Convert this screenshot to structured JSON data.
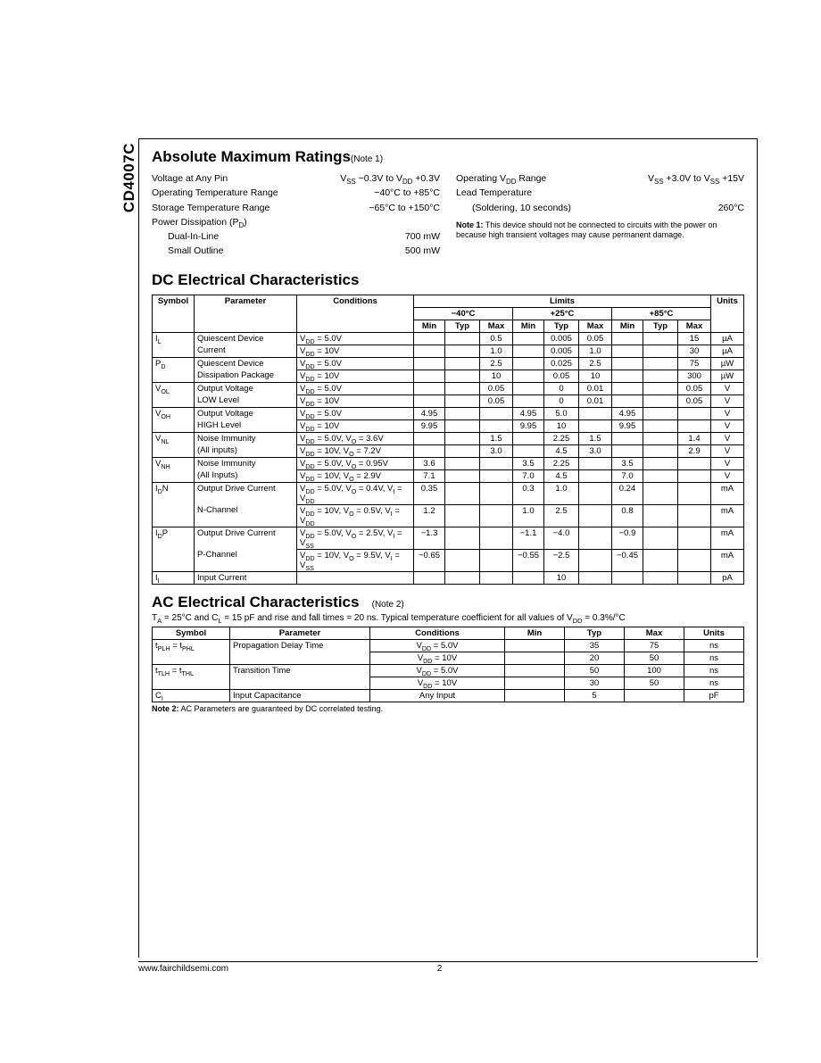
{
  "part_number": "CD4007C",
  "footer_url": "www.fairchildsemi.com",
  "page_number": "2",
  "amr": {
    "title": "Absolute Maximum Ratings",
    "title_note": "(Note 1)",
    "left": [
      {
        "label_html": "Voltage at Any Pin",
        "value_html": "V<sub>SS</sub> −0.3V to V<sub>DD</sub> +0.3V",
        "indent": 0
      },
      {
        "label_html": "Operating Temperature Range",
        "value_html": "−40°C to +85°C",
        "indent": 0
      },
      {
        "label_html": "Storage Temperature Range",
        "value_html": "−65°C to +150°C",
        "indent": 0
      },
      {
        "label_html": "Power Dissipation (P<sub>D</sub>)",
        "value_html": "",
        "indent": 0
      },
      {
        "label_html": "Dual-In-Line",
        "value_html": "700 mW",
        "indent": 1
      },
      {
        "label_html": "Small Outline",
        "value_html": "500 mW",
        "indent": 1
      }
    ],
    "right": [
      {
        "label_html": "Operating V<sub>DD</sub> Range",
        "value_html": "V<sub>SS</sub> +3.0V to V<sub>SS</sub> +15V",
        "indent": 0
      },
      {
        "label_html": "Lead Temperature",
        "value_html": "",
        "indent": 0
      },
      {
        "label_html": "(Soldering, 10 seconds)",
        "value_html": "260°C",
        "indent": 1
      }
    ],
    "note1_html": "<b>Note 1:</b> This device should not be connected to circuits with the power on because high transient voltages may cause permanent damage."
  },
  "dc": {
    "title": "DC Electrical Characteristics",
    "header_limits": "Limits",
    "temps": [
      "−40°C",
      "+25°C",
      "+85°C"
    ],
    "cols": [
      "Symbol",
      "Parameter",
      "Conditions",
      "Min",
      "Typ",
      "Max",
      "Min",
      "Typ",
      "Max",
      "Min",
      "Typ",
      "Max",
      "Units"
    ],
    "groups": [
      {
        "symbol_html": "I<sub>L</sub>",
        "rows": [
          {
            "param": "Quiescent Device",
            "cond_html": "V<sub>DD</sub> = 5.0V",
            "m40": [
              "",
              "",
              "0.5"
            ],
            "p25": [
              "",
              "0.005",
              "0.05"
            ],
            "p85": [
              "",
              "",
              "15"
            ],
            "unit": "µA"
          },
          {
            "param": "Current",
            "cond_html": "V<sub>DD</sub> = 10V",
            "m40": [
              "",
              "",
              "1.0"
            ],
            "p25": [
              "",
              "0.005",
              "1.0"
            ],
            "p85": [
              "",
              "",
              "30"
            ],
            "unit": "µA"
          }
        ]
      },
      {
        "symbol_html": "P<sub>D</sub>",
        "rows": [
          {
            "param": "Quiescent Device",
            "cond_html": "V<sub>DD</sub> = 5.0V",
            "m40": [
              "",
              "",
              "2.5"
            ],
            "p25": [
              "",
              "0.025",
              "2.5"
            ],
            "p85": [
              "",
              "",
              "75"
            ],
            "unit": "µW"
          },
          {
            "param": "Dissipation Package",
            "cond_html": "V<sub>DD</sub> = 10V",
            "m40": [
              "",
              "",
              "10"
            ],
            "p25": [
              "",
              "0.05",
              "10"
            ],
            "p85": [
              "",
              "",
              "300"
            ],
            "unit": "µW"
          }
        ]
      },
      {
        "symbol_html": "V<sub>OL</sub>",
        "rows": [
          {
            "param": "Output Voltage",
            "cond_html": "V<sub>DD</sub> = 5.0V",
            "m40": [
              "",
              "",
              "0.05"
            ],
            "p25": [
              "",
              "0",
              "0.01"
            ],
            "p85": [
              "",
              "",
              "0.05"
            ],
            "unit": "V"
          },
          {
            "param": "LOW Level",
            "cond_html": "V<sub>DD</sub> = 10V",
            "m40": [
              "",
              "",
              "0.05"
            ],
            "p25": [
              "",
              "0",
              "0.01"
            ],
            "p85": [
              "",
              "",
              "0.05"
            ],
            "unit": "V"
          }
        ]
      },
      {
        "symbol_html": "V<sub>OH</sub>",
        "rows": [
          {
            "param": "Output Voltage",
            "cond_html": "V<sub>DD</sub> = 5.0V",
            "m40": [
              "4.95",
              "",
              ""
            ],
            "p25": [
              "4.95",
              "5.0",
              ""
            ],
            "p85": [
              "4.95",
              "",
              ""
            ],
            "unit": "V"
          },
          {
            "param": "HIGH Level",
            "cond_html": "V<sub>DD</sub> = 10V",
            "m40": [
              "9.95",
              "",
              ""
            ],
            "p25": [
              "9.95",
              "10",
              ""
            ],
            "p85": [
              "9.95",
              "",
              ""
            ],
            "unit": "V"
          }
        ]
      },
      {
        "symbol_html": "V<sub>NL</sub>",
        "rows": [
          {
            "param": "Noise Immunity",
            "cond_html": "V<sub>DD</sub> = 5.0V, V<sub>O</sub> = 3.6V",
            "m40": [
              "",
              "",
              "1.5"
            ],
            "p25": [
              "",
              "2.25",
              "1.5"
            ],
            "p85": [
              "",
              "",
              "1.4"
            ],
            "unit": "V"
          },
          {
            "param": "(All inputs)",
            "cond_html": "V<sub>DD</sub> = 10V, V<sub>O</sub> = 7.2V",
            "m40": [
              "",
              "",
              "3.0"
            ],
            "p25": [
              "",
              "4.5",
              "3.0"
            ],
            "p85": [
              "",
              "",
              "2.9"
            ],
            "unit": "V"
          }
        ]
      },
      {
        "symbol_html": "V<sub>NH</sub>",
        "rows": [
          {
            "param": "Noise Immunity",
            "cond_html": "V<sub>DD</sub> = 5.0V, V<sub>O</sub> = 0.95V",
            "m40": [
              "3.6",
              "",
              ""
            ],
            "p25": [
              "3.5",
              "2.25",
              ""
            ],
            "p85": [
              "3.5",
              "",
              ""
            ],
            "unit": "V"
          },
          {
            "param": "(All Inputs)",
            "cond_html": "V<sub>DD</sub> = 10V, V<sub>O</sub> = 2.9V",
            "m40": [
              "7.1",
              "",
              ""
            ],
            "p25": [
              "7.0",
              "4.5",
              ""
            ],
            "p85": [
              "7.0",
              "",
              ""
            ],
            "unit": "V"
          }
        ]
      },
      {
        "symbol_html": "I<sub>D</sub>N",
        "rows": [
          {
            "param": "Output Drive Current",
            "cond_html": "V<sub>DD</sub> = 5.0V, V<sub>O</sub> = 0.4V, V<sub>I</sub> = V<sub>DD</sub>",
            "m40": [
              "0.35",
              "",
              ""
            ],
            "p25": [
              "0.3",
              "1.0",
              ""
            ],
            "p85": [
              "0.24",
              "",
              ""
            ],
            "unit": "mA"
          },
          {
            "param": "N-Channel",
            "cond_html": "V<sub>DD</sub> = 10V, V<sub>O</sub> = 0.5V, V<sub>I</sub> = V<sub>DD</sub>",
            "m40": [
              "1.2",
              "",
              ""
            ],
            "p25": [
              "1.0",
              "2.5",
              ""
            ],
            "p85": [
              "0.8",
              "",
              ""
            ],
            "unit": "mA"
          }
        ]
      },
      {
        "symbol_html": "I<sub>D</sub>P",
        "rows": [
          {
            "param": "Output Drive Current",
            "cond_html": "V<sub>DD</sub> = 5.0V, V<sub>O</sub> = 2.5V, V<sub>I</sub> = V<sub>SS</sub>",
            "m40": [
              "−1.3",
              "",
              ""
            ],
            "p25": [
              "−1.1",
              "−4.0",
              ""
            ],
            "p85": [
              "−0.9",
              "",
              ""
            ],
            "unit": "mA"
          },
          {
            "param": "P-Channel",
            "cond_html": "V<sub>DD</sub> = 10V, V<sub>O</sub> = 9.5V, V<sub>I</sub> = V<sub>SS</sub>",
            "m40": [
              "−0.65",
              "",
              ""
            ],
            "p25": [
              "−0.55",
              "−2.5",
              ""
            ],
            "p85": [
              "−0.45",
              "",
              ""
            ],
            "unit": "mA"
          }
        ]
      },
      {
        "symbol_html": "I<sub>I</sub>",
        "rows": [
          {
            "param": "Input Current",
            "cond_html": "",
            "m40": [
              "",
              "",
              ""
            ],
            "p25": [
              "",
              "10",
              ""
            ],
            "p85": [
              "",
              "",
              ""
            ],
            "unit": "pA"
          }
        ]
      }
    ]
  },
  "ac": {
    "title": "AC Electrical Characteristics",
    "title_note": "(Note 2)",
    "subtitle_html": "T<sub>A</sub> = 25°C and C<sub>L</sub> = 15 pF and rise and fall times = 20 ns. Typical temperature coefficient for all values of V<sub>DD</sub> = 0.3%/°C",
    "cols": [
      "Symbol",
      "Parameter",
      "Conditions",
      "Min",
      "Typ",
      "Max",
      "Units"
    ],
    "groups": [
      {
        "symbol_html": "t<sub>PLH</sub> = t<sub>PHL</sub>",
        "rows": [
          {
            "param": "Propagation Delay Time",
            "cond_html": "V<sub>DD</sub> = 5.0V",
            "min": "",
            "typ": "35",
            "max": "75",
            "unit": "ns"
          },
          {
            "param": "",
            "cond_html": "V<sub>DD</sub> = 10V",
            "min": "",
            "typ": "20",
            "max": "50",
            "unit": "ns"
          }
        ]
      },
      {
        "symbol_html": "t<sub>TLH</sub> = t<sub>THL</sub>",
        "rows": [
          {
            "param": "Transition Time",
            "cond_html": "V<sub>DD</sub> = 5.0V",
            "min": "",
            "typ": "50",
            "max": "100",
            "unit": "ns"
          },
          {
            "param": "",
            "cond_html": "V<sub>DD</sub> = 10V",
            "min": "",
            "typ": "30",
            "max": "50",
            "unit": "ns"
          }
        ]
      },
      {
        "symbol_html": "C<sub>I</sub>",
        "rows": [
          {
            "param": "Input Capacitance",
            "cond_html": "Any Input",
            "min": "",
            "typ": "5",
            "max": "",
            "unit": "pF"
          }
        ]
      }
    ],
    "note2_html": "<b>Note 2:</b> AC Parameters are guaranteed by DC correlated testing."
  }
}
